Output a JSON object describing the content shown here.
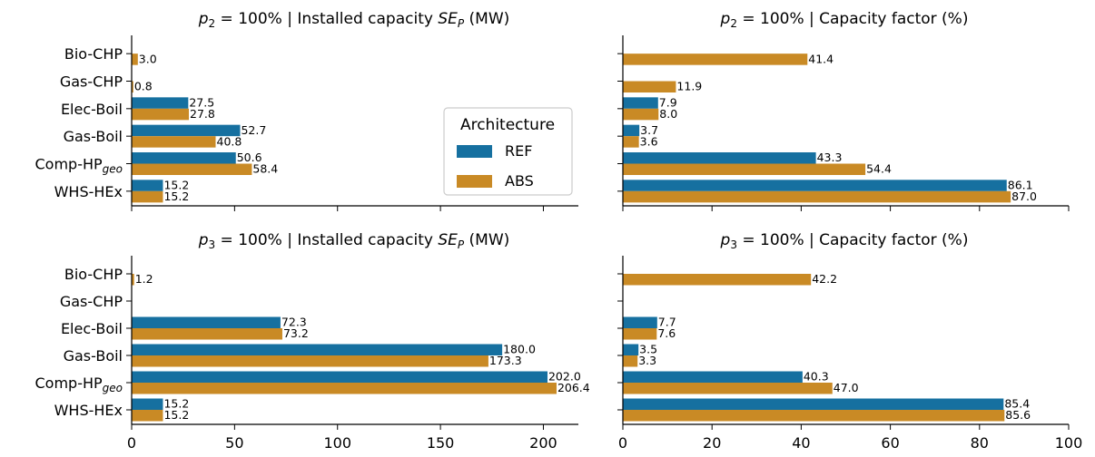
{
  "colors": {
    "REF": "#1670a0",
    "ABS": "#c98a25"
  },
  "legend": {
    "title": "Architecture",
    "items": [
      {
        "name": "REF",
        "color": "#1670a0"
      },
      {
        "name": "ABS",
        "color": "#c98a25"
      }
    ]
  },
  "chart_data": [
    {
      "type": "bar",
      "orientation": "horizontal",
      "title": {
        "prefix": "p",
        "sub": "2",
        "mid": " = 100% | Installed capacity ",
        "var": "SE",
        "varsub": "P",
        "suffix": " (MW)"
      },
      "categories": [
        "Bio-CHP",
        "Gas-CHP",
        "Elec-Boil",
        "Gas-Boil",
        "Comp-HP_geo",
        "WHS-HEx"
      ],
      "series": [
        {
          "name": "REF",
          "values": [
            null,
            null,
            27.5,
            52.7,
            50.6,
            15.2
          ]
        },
        {
          "name": "ABS",
          "values": [
            3.0,
            0.8,
            27.8,
            40.8,
            58.4,
            15.2
          ]
        }
      ],
      "data_labels": {
        "REF": [
          null,
          null,
          "27.5",
          "52.7",
          "50.6",
          "15.2"
        ],
        "ABS": [
          "3.0",
          "0.8",
          "27.8",
          "40.8",
          "58.4",
          "15.2"
        ]
      },
      "xlim": [
        0,
        217
      ],
      "xticks": [
        0,
        50,
        100,
        150,
        200
      ],
      "show_xtick_labels": false,
      "show_yticklabels": true,
      "legend": "center-right"
    },
    {
      "type": "bar",
      "orientation": "horizontal",
      "title": {
        "prefix": "p",
        "sub": "2",
        "mid": " = 100% | Capacity factor (%)",
        "var": "",
        "varsub": "",
        "suffix": ""
      },
      "categories": [
        "Bio-CHP",
        "Gas-CHP",
        "Elec-Boil",
        "Gas-Boil",
        "Comp-HP_geo",
        "WHS-HEx"
      ],
      "series": [
        {
          "name": "REF",
          "values": [
            null,
            null,
            7.9,
            3.7,
            43.3,
            86.1
          ]
        },
        {
          "name": "ABS",
          "values": [
            41.4,
            11.9,
            8.0,
            3.6,
            54.4,
            87.0
          ]
        }
      ],
      "data_labels": {
        "REF": [
          null,
          null,
          "7.9",
          "3.7",
          "43.3",
          "86.1"
        ],
        "ABS": [
          "41.4",
          "11.9",
          "8.0",
          "3.6",
          "54.4",
          "87.0"
        ]
      },
      "xlim": [
        0,
        100
      ],
      "xticks": [
        0,
        20,
        40,
        60,
        80,
        100
      ],
      "show_xtick_labels": false,
      "show_yticklabels": false
    },
    {
      "type": "bar",
      "orientation": "horizontal",
      "title": {
        "prefix": "p",
        "sub": "3",
        "mid": " = 100% | Installed capacity ",
        "var": "SE",
        "varsub": "P",
        "suffix": " (MW)"
      },
      "categories": [
        "Bio-CHP",
        "Gas-CHP",
        "Elec-Boil",
        "Gas-Boil",
        "Comp-HP_geo",
        "WHS-HEx"
      ],
      "series": [
        {
          "name": "REF",
          "values": [
            null,
            null,
            72.3,
            180.0,
            202.0,
            15.2
          ]
        },
        {
          "name": "ABS",
          "values": [
            1.2,
            null,
            73.2,
            173.3,
            206.4,
            15.2
          ]
        }
      ],
      "data_labels": {
        "REF": [
          null,
          null,
          "72.3",
          "180.0",
          "202.0",
          "15.2"
        ],
        "ABS": [
          "1.2",
          null,
          "73.2",
          "173.3",
          "206.4",
          "15.2"
        ]
      },
      "xlim": [
        0,
        217
      ],
      "xticks": [
        0,
        50,
        100,
        150,
        200
      ],
      "show_xtick_labels": true,
      "show_yticklabels": true
    },
    {
      "type": "bar",
      "orientation": "horizontal",
      "title": {
        "prefix": "p",
        "sub": "3",
        "mid": " = 100% | Capacity factor (%)",
        "var": "",
        "varsub": "",
        "suffix": ""
      },
      "categories": [
        "Bio-CHP",
        "Gas-CHP",
        "Elec-Boil",
        "Gas-Boil",
        "Comp-HP_geo",
        "WHS-HEx"
      ],
      "series": [
        {
          "name": "REF",
          "values": [
            null,
            null,
            7.7,
            3.5,
            40.3,
            85.4
          ]
        },
        {
          "name": "ABS",
          "values": [
            42.2,
            null,
            7.6,
            3.3,
            47.0,
            85.6
          ]
        }
      ],
      "data_labels": {
        "REF": [
          null,
          null,
          "7.7",
          "3.5",
          "40.3",
          "85.4"
        ],
        "ABS": [
          "42.2",
          null,
          "7.6",
          "3.3",
          "47.0",
          "85.6"
        ]
      },
      "xlim": [
        0,
        100
      ],
      "xticks": [
        0,
        20,
        40,
        60,
        80,
        100
      ],
      "show_xtick_labels": true,
      "show_yticklabels": false
    }
  ]
}
